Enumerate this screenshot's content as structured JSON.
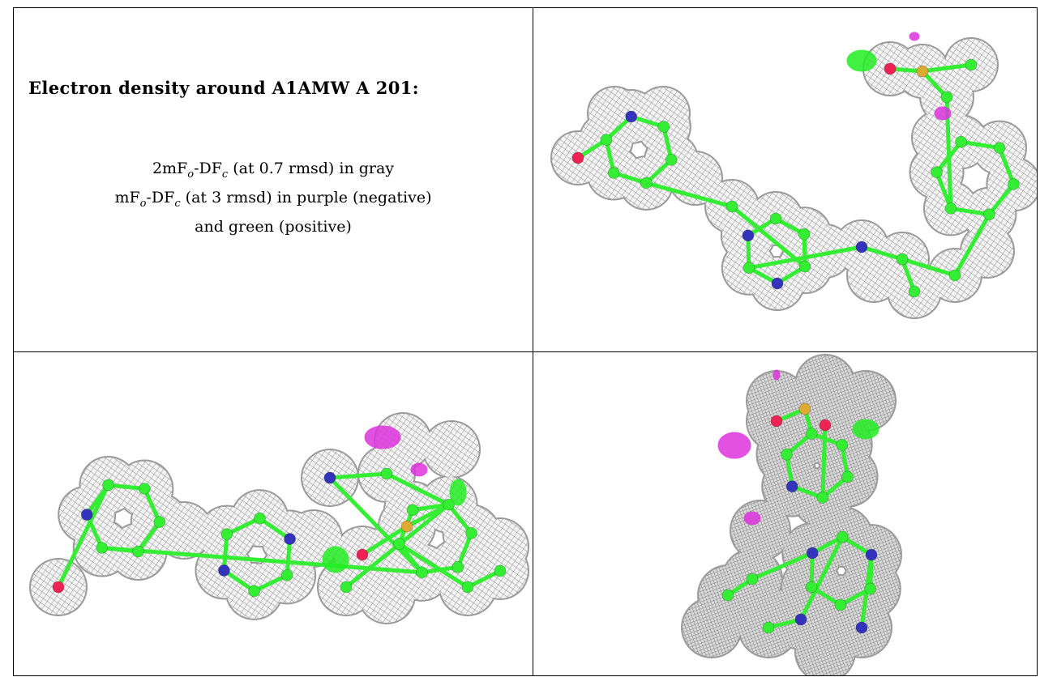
{
  "title": "Electron density around A1AMW A 201:",
  "lines": [
    {
      "a": "2mF",
      "sub1": "o",
      "b": "-DF",
      "sub2": "c",
      "rest": " (at 0.7 rmsd) in gray"
    },
    {
      "a": "mF",
      "sub1": "o",
      "b": "-DF",
      "sub2": "c",
      "rest": " (at 3 rmsd) in purple (negative)"
    },
    {
      "text": "and green (positive)"
    }
  ],
  "colors": {
    "mesh": "#8a8a8a",
    "carbon": "#33ee33",
    "nitrogen": "#3333bb",
    "oxygen": "#ee2255",
    "sulfur": "#ddaa33",
    "negative": "#dd33dd",
    "positive": "#22ee22"
  },
  "panels": [
    {
      "name": "view-top-right",
      "icon": "electron-density-view-1"
    },
    {
      "name": "view-bottom-left",
      "icon": "electron-density-view-2"
    },
    {
      "name": "view-bottom-right",
      "icon": "electron-density-view-3"
    }
  ]
}
